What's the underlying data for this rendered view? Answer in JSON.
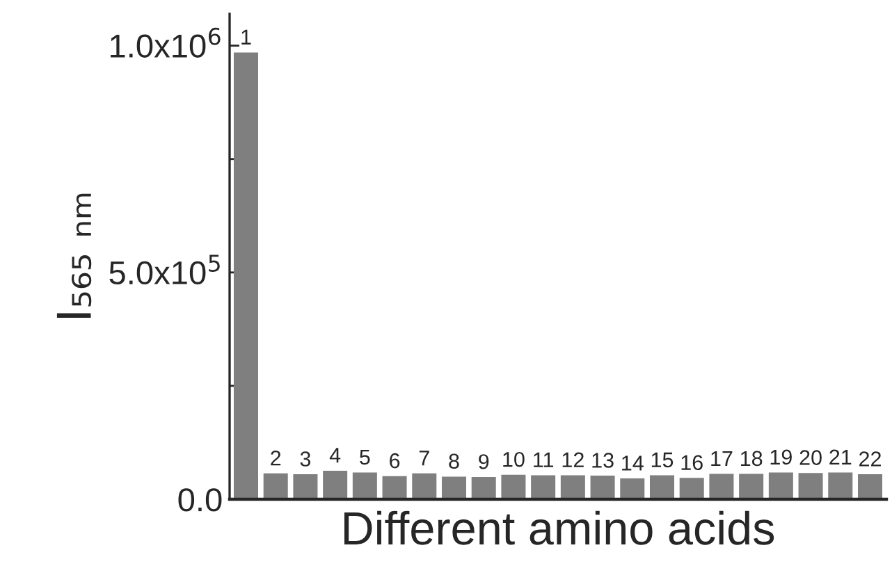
{
  "chart_data": {
    "type": "bar",
    "xlabel": "Different amino acids",
    "ylabel": "I₅₆₅ ₙₘ",
    "categories": [
      "1",
      "2",
      "3",
      "4",
      "5",
      "6",
      "7",
      "8",
      "9",
      "10",
      "11",
      "12",
      "13",
      "14",
      "15",
      "16",
      "17",
      "18",
      "19",
      "20",
      "21",
      "22"
    ],
    "values": [
      985000,
      57000,
      55000,
      63000,
      59000,
      51000,
      57000,
      50000,
      49000,
      54000,
      53000,
      53000,
      52000,
      46000,
      53000,
      47000,
      56000,
      56000,
      59000,
      58000,
      59000,
      55000
    ],
    "color": "#7f7f7f",
    "ylim": [
      0,
      1070000
    ],
    "yticks": [
      {
        "value": 0,
        "label": "0.0"
      },
      {
        "value": 250000,
        "label": null
      },
      {
        "value": 500000,
        "label": "5.0x10$^{5}$"
      },
      {
        "value": 750000,
        "label": null
      },
      {
        "value": 1000000,
        "label": "1.0x10$^{6}$"
      }
    ],
    "tick_labels": "y",
    "grid": false,
    "legend": false
  }
}
